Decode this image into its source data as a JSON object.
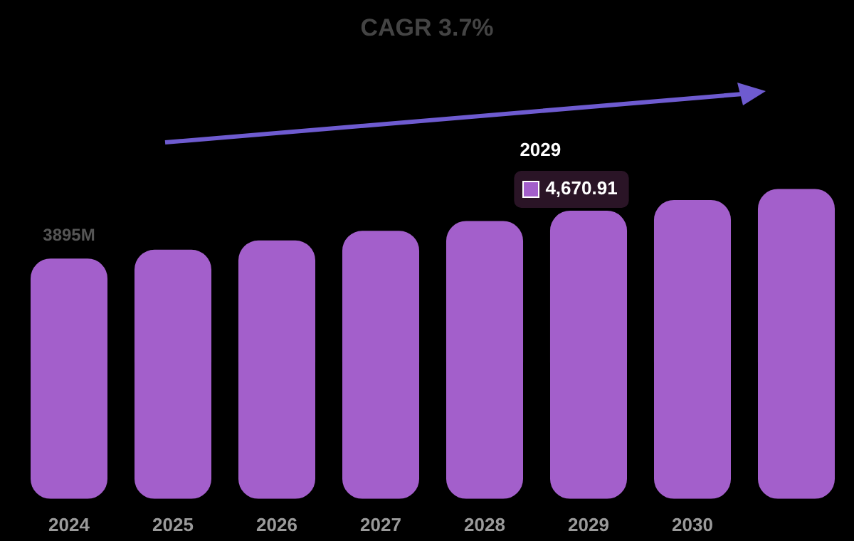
{
  "chart_data": {
    "type": "bar",
    "title": "CAGR 3.7%",
    "categories": [
      "2024",
      "2025",
      "2026",
      "2027",
      "2028",
      "2029",
      "2030",
      null
    ],
    "values": [
      3895,
      4039,
      4189,
      4344,
      4504,
      4670.91,
      4844,
      5023
    ],
    "color": "#a35fcb",
    "value_labels": [
      "3895M",
      null,
      null,
      null,
      null,
      null,
      null,
      null
    ],
    "annotations": [
      {
        "text": "4,670.91",
        "x": "2029",
        "y": 4670.91
      }
    ],
    "tick_labels": "x",
    "grid": false,
    "legend": false
  }
}
